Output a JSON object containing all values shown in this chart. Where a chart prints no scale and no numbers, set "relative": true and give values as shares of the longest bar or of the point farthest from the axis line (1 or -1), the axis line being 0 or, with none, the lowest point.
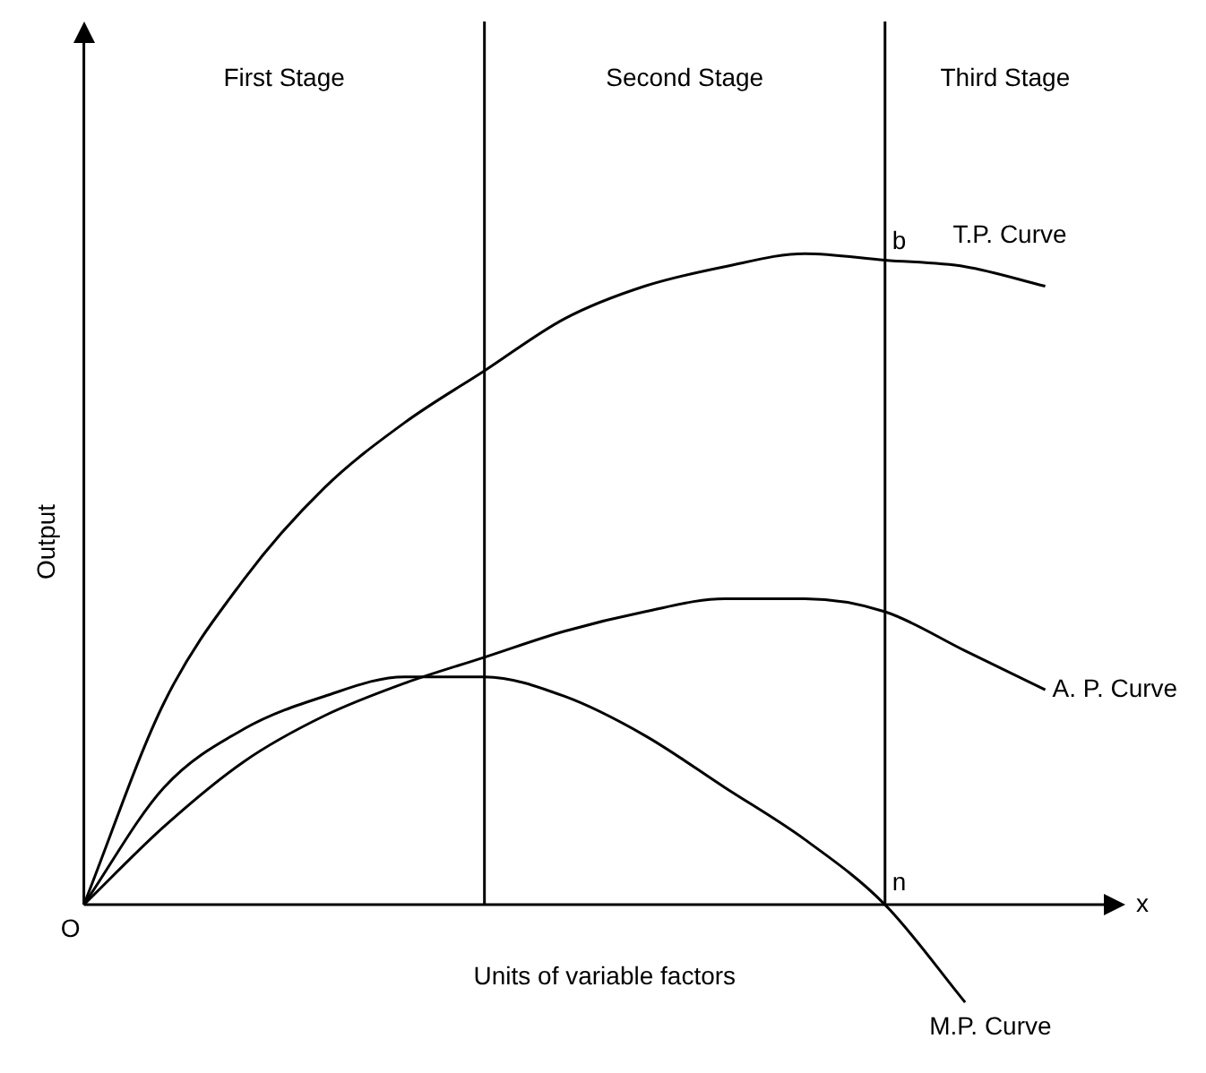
{
  "chart_data": {
    "type": "line",
    "relative": true,
    "xlabel": "Units of variable factors",
    "ylabel": "Output",
    "grid": false,
    "marker": "none",
    "line_style": "solid",
    "categories": [
      null,
      null,
      null,
      null,
      null,
      null,
      null,
      null,
      null,
      null,
      null,
      null,
      null,
      null
    ],
    "series": [
      {
        "name": "T.P. Curve",
        "color": "#000000",
        "values": [
          0,
          0.31,
          0.5,
          0.64,
          0.74,
          0.82,
          0.9,
          0.95,
          0.98,
          1,
          0.99,
          0.98,
          0.95,
          null
        ]
      },
      {
        "name": "A. P. Curve",
        "color": "#000000",
        "values": [
          0,
          0.12,
          0.22,
          0.29,
          0.34,
          0.38,
          0.42,
          0.45,
          0.47,
          0.47,
          0.45,
          0.39,
          0.33,
          null
        ]
      },
      {
        "name": "M.P. Curve",
        "color": "#000000",
        "values": [
          0,
          0.18,
          0.27,
          0.32,
          0.35,
          0.35,
          0.32,
          0.26,
          0.18,
          0.1,
          0,
          -0.15,
          null,
          null
        ]
      }
    ],
    "annotations": [
      "First Stage",
      "Second Stage",
      "Third Stage",
      "b",
      "n",
      "O",
      "x"
    ]
  }
}
